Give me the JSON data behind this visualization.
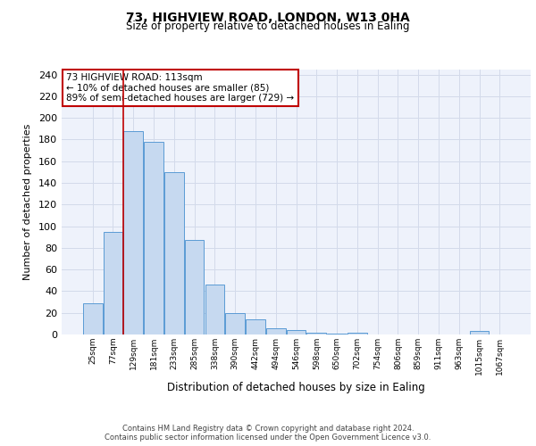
{
  "title_line1": "73, HIGHVIEW ROAD, LONDON, W13 0HA",
  "title_line2": "Size of property relative to detached houses in Ealing",
  "xlabel": "Distribution of detached houses by size in Ealing",
  "ylabel": "Number of detached properties",
  "categories": [
    "25sqm",
    "77sqm",
    "129sqm",
    "181sqm",
    "233sqm",
    "285sqm",
    "338sqm",
    "390sqm",
    "442sqm",
    "494sqm",
    "546sqm",
    "598sqm",
    "650sqm",
    "702sqm",
    "754sqm",
    "806sqm",
    "859sqm",
    "911sqm",
    "963sqm",
    "1015sqm",
    "1067sqm"
  ],
  "bar_heights": [
    29,
    95,
    188,
    178,
    150,
    87,
    46,
    20,
    14,
    6,
    4,
    2,
    1,
    2,
    0,
    0,
    0,
    0,
    0,
    3,
    0
  ],
  "bar_color": "#c6d9f0",
  "bar_edge_color": "#5b9bd5",
  "vline_x": 1.5,
  "vline_color": "#c00000",
  "annotation_text": "73 HIGHVIEW ROAD: 113sqm\n← 10% of detached houses are smaller (85)\n89% of semi-detached houses are larger (729) →",
  "annotation_box_color": "#ffffff",
  "annotation_box_edge_color": "#c00000",
  "ylim": [
    0,
    245
  ],
  "ytick_step": 20,
  "grid_color": "#d3daea",
  "footer_text": "Contains HM Land Registry data © Crown copyright and database right 2024.\nContains public sector information licensed under the Open Government Licence v3.0.",
  "bg_color": "#eef2fb"
}
